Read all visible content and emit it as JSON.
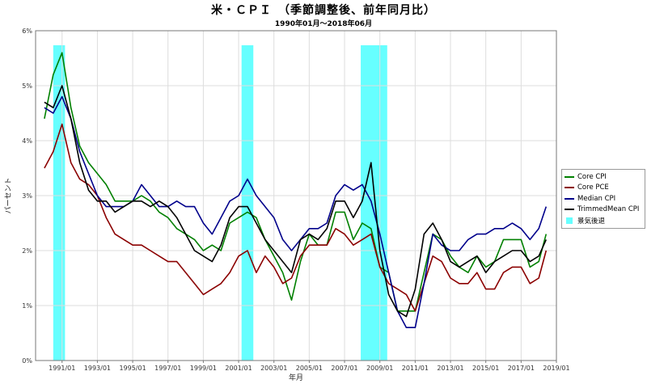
{
  "title": "米・ＣＰＩ　（季節調整後、前年同月比）",
  "subtitle": "1990年01月～2018年06月",
  "chart_data": {
    "type": "line",
    "title": "米・ＣＰＩ　（季節調整後、前年同月比）",
    "subtitle": "1990年01月～2018年06月",
    "xlabel": "年月",
    "ylabel": "パーセント",
    "xlim": [
      "1989/07",
      "2019/01"
    ],
    "ylim": [
      0,
      6
    ],
    "y_ticks": [
      "0%",
      "1%",
      "2%",
      "3%",
      "4%",
      "5%",
      "6%"
    ],
    "x_ticks": [
      "1991/01",
      "1993/01",
      "1995/01",
      "1997/01",
      "1999/01",
      "2001/01",
      "2003/01",
      "2005/01",
      "2007/01",
      "2009/01",
      "2011/01",
      "2013/01",
      "2015/01",
      "2017/01",
      "2019/01"
    ],
    "grid": true,
    "legend_position": "right",
    "recessions": [
      {
        "start": "1990/07",
        "end": "1991/03"
      },
      {
        "start": "2001/03",
        "end": "2001/11"
      },
      {
        "start": "2007/12",
        "end": "2009/06"
      }
    ],
    "recession_label": "景気後退",
    "recession_color": "#66ffff",
    "series_x": [
      "1990/01",
      "1990/07",
      "1991/01",
      "1991/07",
      "1992/01",
      "1992/07",
      "1993/01",
      "1993/07",
      "1994/01",
      "1994/07",
      "1995/01",
      "1995/07",
      "1996/01",
      "1996/07",
      "1997/01",
      "1997/07",
      "1998/01",
      "1998/07",
      "1999/01",
      "1999/07",
      "2000/01",
      "2000/07",
      "2001/01",
      "2001/07",
      "2002/01",
      "2002/07",
      "2003/01",
      "2003/07",
      "2004/01",
      "2004/07",
      "2005/01",
      "2005/07",
      "2006/01",
      "2006/07",
      "2007/01",
      "2007/07",
      "2008/01",
      "2008/07",
      "2009/01",
      "2009/07",
      "2010/01",
      "2010/07",
      "2011/01",
      "2011/07",
      "2012/01",
      "2012/07",
      "2013/01",
      "2013/07",
      "2014/01",
      "2014/07",
      "2015/01",
      "2015/07",
      "2016/01",
      "2016/07",
      "2017/01",
      "2017/07",
      "2018/01",
      "2018/06"
    ],
    "series": [
      {
        "name": "Core CPI",
        "color": "#008000",
        "values": [
          4.4,
          5.2,
          5.6,
          4.6,
          3.9,
          3.6,
          3.4,
          3.2,
          2.9,
          2.9,
          2.9,
          3.0,
          2.9,
          2.7,
          2.6,
          2.4,
          2.3,
          2.2,
          2.0,
          2.1,
          2.0,
          2.5,
          2.6,
          2.7,
          2.6,
          2.2,
          1.9,
          1.6,
          1.1,
          1.8,
          2.3,
          2.1,
          2.1,
          2.7,
          2.7,
          2.2,
          2.5,
          2.4,
          1.7,
          1.6,
          0.9,
          0.9,
          0.9,
          1.6,
          2.3,
          2.2,
          1.9,
          1.7,
          1.6,
          1.9,
          1.7,
          1.8,
          2.2,
          2.2,
          2.2,
          1.7,
          1.8,
          2.3
        ]
      },
      {
        "name": "Core PCE",
        "color": "#8b0000",
        "values": [
          3.5,
          3.8,
          4.3,
          3.6,
          3.3,
          3.2,
          3.0,
          2.6,
          2.3,
          2.2,
          2.1,
          2.1,
          2.0,
          1.9,
          1.8,
          1.8,
          1.6,
          1.4,
          1.2,
          1.3,
          1.4,
          1.6,
          1.9,
          2.0,
          1.6,
          1.9,
          1.7,
          1.4,
          1.5,
          1.9,
          2.1,
          2.1,
          2.1,
          2.4,
          2.3,
          2.1,
          2.2,
          2.3,
          1.7,
          1.4,
          1.3,
          1.2,
          0.9,
          1.4,
          1.9,
          1.8,
          1.5,
          1.4,
          1.4,
          1.6,
          1.3,
          1.3,
          1.6,
          1.7,
          1.7,
          1.4,
          1.5,
          2.0
        ]
      },
      {
        "name": "Median CPI",
        "color": "#00008b",
        "values": [
          4.6,
          4.5,
          4.8,
          4.4,
          3.8,
          3.4,
          3.0,
          2.8,
          2.8,
          2.8,
          2.9,
          3.2,
          3.0,
          2.8,
          2.8,
          2.9,
          2.8,
          2.8,
          2.5,
          2.3,
          2.6,
          2.9,
          3.0,
          3.3,
          3.0,
          2.8,
          2.6,
          2.2,
          2.0,
          2.2,
          2.4,
          2.4,
          2.5,
          3.0,
          3.2,
          3.1,
          3.2,
          2.9,
          2.3,
          1.6,
          0.9,
          0.6,
          0.6,
          1.4,
          2.3,
          2.1,
          2.0,
          2.0,
          2.2,
          2.3,
          2.3,
          2.4,
          2.4,
          2.5,
          2.4,
          2.2,
          2.4,
          2.8
        ]
      },
      {
        "name": "TrimmedMean CPI",
        "color": "#000000",
        "values": [
          4.7,
          4.6,
          5.0,
          4.4,
          3.6,
          3.1,
          2.9,
          2.9,
          2.7,
          2.8,
          2.9,
          2.9,
          2.8,
          2.9,
          2.8,
          2.6,
          2.3,
          2.0,
          1.9,
          1.8,
          2.1,
          2.6,
          2.8,
          2.8,
          2.5,
          2.2,
          2.0,
          1.8,
          1.6,
          2.2,
          2.3,
          2.2,
          2.4,
          2.9,
          2.9,
          2.6,
          2.9,
          3.6,
          2.0,
          1.2,
          0.9,
          0.8,
          1.3,
          2.3,
          2.5,
          2.2,
          1.8,
          1.7,
          1.8,
          1.9,
          1.6,
          1.8,
          1.9,
          2.0,
          2.0,
          1.8,
          1.9,
          2.2
        ]
      }
    ]
  }
}
